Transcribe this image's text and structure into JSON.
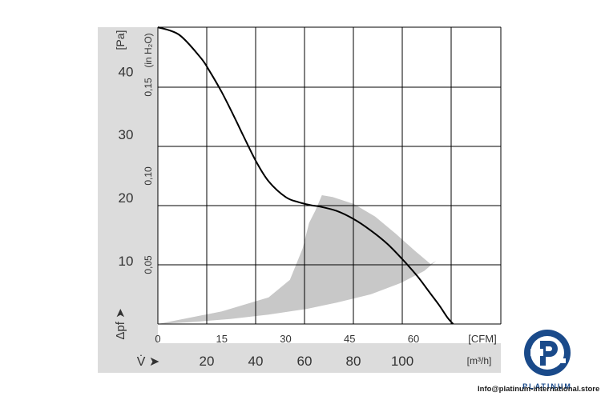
{
  "chart_data": {
    "type": "line",
    "y_axis": {
      "unit": "[Pa]",
      "ticks": [
        "10",
        "20",
        "30",
        "40"
      ],
      "range": [
        0,
        47
      ],
      "label": "Δpf ➤",
      "secondary_unit": "(in H₂O)",
      "secondary_ticks": [
        "0,05",
        "0,10",
        "0,15"
      ]
    },
    "x_axis": {
      "unit": "[CFM]",
      "ticks": [
        "0",
        "15",
        "30",
        "45",
        "60"
      ],
      "range": [
        0,
        80.5
      ]
    },
    "x_axis_2": {
      "unit": "[m³/h]",
      "label": "V̇ ➤",
      "ticks": [
        "20",
        "40",
        "60",
        "80",
        "100"
      ]
    },
    "series": [
      {
        "style": "curve",
        "color": "#000000",
        "x": [
          0,
          5,
          10,
          12,
          15,
          18,
          20,
          23,
          26,
          30,
          33,
          36,
          38,
          42,
          46,
          50,
          54,
          58,
          61,
          64,
          66,
          68,
          69.3
        ],
        "y": [
          47,
          45.8,
          42.2,
          40.2,
          36.7,
          32.7,
          29.9,
          25.8,
          22.6,
          20.1,
          19.3,
          18.8,
          18.6,
          17.9,
          16.6,
          14.8,
          12.6,
          9.8,
          7.5,
          4.8,
          3,
          1,
          0
        ]
      }
    ],
    "operating_area": {
      "color": "#c8c8c8",
      "x": [
        0,
        15,
        26,
        31,
        34,
        35.5,
        37,
        38.5,
        41,
        46,
        51,
        56,
        60.3,
        64,
        65.3,
        62.5,
        57,
        50,
        42,
        35,
        26,
        17,
        8,
        0
      ],
      "y": [
        0,
        2,
        4.2,
        7,
        12,
        16,
        18,
        20.4,
        20.1,
        19,
        17,
        14.2,
        11.6,
        9.5,
        10,
        8.4,
        6.5,
        4.7,
        3.4,
        2.4,
        1.5,
        0.8,
        0.3,
        0
      ]
    },
    "grid": true
  },
  "brand": {
    "name": "PLATINUM",
    "contact": "Info@platinum-international.store",
    "color": "#1a4a8a"
  }
}
